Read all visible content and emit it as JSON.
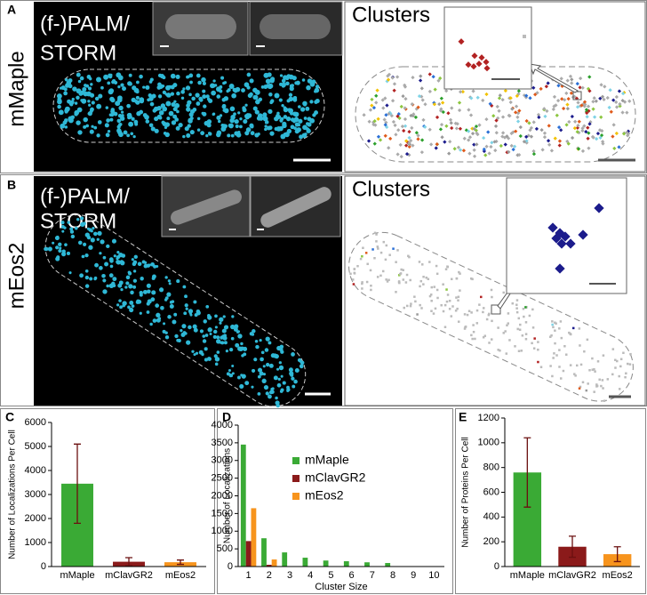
{
  "panels": [
    {
      "letter": "A",
      "row_label": "mMaple",
      "title_lines": [
        "(f-)PALM/",
        "STORM"
      ],
      "clusters_title": "Clusters"
    },
    {
      "letter": "B",
      "row_label": "mEos2",
      "title_lines": [
        "(f-)PALM/",
        "STORM"
      ],
      "clusters_title": "Clusters"
    }
  ],
  "chart_data": [
    {
      "type": "bar",
      "panel_label": "C",
      "ylabel": "Number of Localizations Per Cell",
      "categories": [
        "mMaple",
        "mClavGR2",
        "mEos2"
      ],
      "values": [
        3450,
        200,
        180
      ],
      "errors": [
        1650,
        170,
        90
      ],
      "colors": [
        "#3aaa35",
        "#8b1a1a",
        "#f7941d"
      ],
      "error_color": "#6b1010",
      "ylim": [
        0,
        6000
      ],
      "yticks": [
        0,
        1000,
        2000,
        3000,
        4000,
        5000,
        6000
      ]
    },
    {
      "type": "grouped-bar",
      "panel_label": "D",
      "ylabel": "Number of Localizations",
      "xlabel": "Cluster Size",
      "categories": [
        "1",
        "2",
        "3",
        "4",
        "5",
        "6",
        "7",
        "8",
        "9",
        "10"
      ],
      "series": [
        {
          "name": "mMaple",
          "color": "#3aaa35",
          "values": [
            3450,
            800,
            400,
            250,
            170,
            150,
            120,
            100,
            0,
            0
          ]
        },
        {
          "name": "mClavGR2",
          "color": "#8b1a1a",
          "values": [
            720,
            50,
            0,
            0,
            0,
            0,
            0,
            0,
            0,
            0
          ]
        },
        {
          "name": "mEos2",
          "color": "#f7941d",
          "values": [
            1650,
            200,
            0,
            0,
            0,
            0,
            0,
            0,
            0,
            0
          ]
        }
      ],
      "legend": "upper center",
      "ylim": [
        0,
        4000
      ],
      "yticks": [
        0,
        500,
        1000,
        1500,
        2000,
        2500,
        3000,
        3500,
        4000
      ]
    },
    {
      "type": "bar",
      "panel_label": "E",
      "ylabel": "Number of Proteins Per Cell",
      "categories": [
        "mMaple",
        "mClavGR2",
        "mEos2"
      ],
      "values": [
        760,
        160,
        100
      ],
      "errors": [
        280,
        85,
        60
      ],
      "colors": [
        "#3aaa35",
        "#8b1a1a",
        "#f7941d"
      ],
      "error_color": "#6b1010",
      "ylim": [
        0,
        1200
      ],
      "yticks": [
        0,
        200,
        400,
        600,
        800,
        1000,
        1200
      ]
    }
  ]
}
